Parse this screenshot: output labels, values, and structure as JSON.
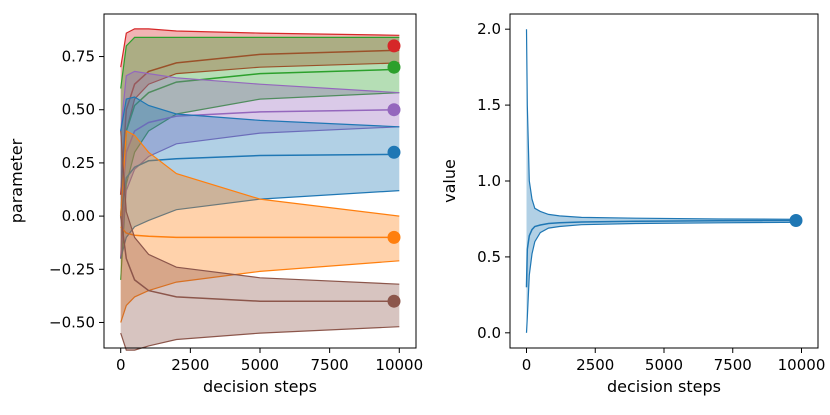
{
  "chart_data": [
    {
      "type": "area",
      "title": "",
      "xlabel": "decision steps",
      "ylabel": "parameter",
      "xlim": [
        -600,
        10600
      ],
      "ylim": [
        -0.62,
        0.95
      ],
      "xticks": [
        0,
        2500,
        5000,
        7500,
        10000
      ],
      "xtick_labels": [
        "0",
        "2500",
        "5000",
        "7500",
        "10000"
      ],
      "yticks": [
        -0.5,
        -0.25,
        0.0,
        0.25,
        0.5,
        0.75
      ],
      "ytick_labels": [
        "−0.50",
        "−0.25",
        "0.00",
        "0.25",
        "0.50",
        "0.75"
      ],
      "grid": false,
      "series": [
        {
          "name": "red",
          "color": "#d62728",
          "true_value": 0.8,
          "x": [
            0,
            200,
            500,
            1000,
            2000,
            5000,
            10000
          ],
          "upper": [
            0.7,
            0.86,
            0.88,
            0.88,
            0.87,
            0.86,
            0.85
          ],
          "mean": [
            0.1,
            0.5,
            0.62,
            0.68,
            0.72,
            0.76,
            0.78
          ],
          "lower": [
            -0.2,
            0.4,
            0.55,
            0.62,
            0.67,
            0.7,
            0.72
          ]
        },
        {
          "name": "green",
          "color": "#2ca02c",
          "true_value": 0.7,
          "x": [
            0,
            200,
            500,
            1000,
            2000,
            5000,
            10000
          ],
          "upper": [
            0.6,
            0.8,
            0.84,
            0.84,
            0.84,
            0.84,
            0.84
          ],
          "mean": [
            0.0,
            0.4,
            0.52,
            0.58,
            0.63,
            0.67,
            0.69
          ],
          "lower": [
            -0.3,
            0.15,
            0.3,
            0.4,
            0.48,
            0.55,
            0.58
          ]
        },
        {
          "name": "purple",
          "color": "#9467bd",
          "true_value": 0.5,
          "x": [
            0,
            200,
            500,
            1000,
            2000,
            5000,
            10000
          ],
          "upper": [
            0.4,
            0.66,
            0.68,
            0.67,
            0.65,
            0.62,
            0.58
          ],
          "mean": [
            0.0,
            0.3,
            0.4,
            0.44,
            0.47,
            0.49,
            0.5
          ],
          "lower": [
            -0.2,
            0.12,
            0.22,
            0.28,
            0.34,
            0.39,
            0.42
          ]
        },
        {
          "name": "blue",
          "color": "#1f77b4",
          "true_value": 0.3,
          "x": [
            0,
            200,
            500,
            1000,
            2000,
            5000,
            10000
          ],
          "upper": [
            0.4,
            0.55,
            0.56,
            0.52,
            0.48,
            0.45,
            0.42
          ],
          "mean": [
            0.0,
            0.18,
            0.23,
            0.26,
            0.27,
            0.285,
            0.29
          ],
          "lower": [
            -0.2,
            -0.1,
            -0.05,
            -0.02,
            0.03,
            0.08,
            0.12
          ]
        },
        {
          "name": "orange",
          "color": "#ff7f0e",
          "true_value": -0.1,
          "x": [
            0,
            200,
            500,
            1000,
            2000,
            5000,
            10000
          ],
          "upper": [
            0.0,
            0.4,
            0.38,
            0.3,
            0.2,
            0.08,
            0.0
          ],
          "mean": [
            -0.05,
            -0.08,
            -0.09,
            -0.095,
            -0.1,
            -0.1,
            -0.1
          ],
          "lower": [
            -0.5,
            -0.42,
            -0.38,
            -0.35,
            -0.31,
            -0.26,
            -0.21
          ]
        },
        {
          "name": "brown",
          "color": "#8c564b",
          "true_value": -0.4,
          "x": [
            0,
            200,
            500,
            1000,
            2000,
            5000,
            10000
          ],
          "upper": [
            0.4,
            0.02,
            -0.1,
            -0.18,
            -0.24,
            -0.29,
            -0.32
          ],
          "mean": [
            0.0,
            -0.2,
            -0.3,
            -0.35,
            -0.38,
            -0.4,
            -0.4
          ],
          "lower": [
            -0.55,
            -0.63,
            -0.63,
            -0.61,
            -0.58,
            -0.55,
            -0.52
          ]
        }
      ]
    },
    {
      "type": "area",
      "title": "",
      "xlabel": "decision steps",
      "ylabel": "value",
      "xlim": [
        -600,
        10600
      ],
      "ylim": [
        -0.1,
        2.1
      ],
      "xticks": [
        0,
        2500,
        5000,
        7500,
        10000
      ],
      "xtick_labels": [
        "0",
        "2500",
        "5000",
        "7500",
        "10000"
      ],
      "yticks": [
        0.0,
        0.5,
        1.0,
        1.5,
        2.0
      ],
      "ytick_labels": [
        "0.0",
        "0.5",
        "1.0",
        "1.5",
        "2.0"
      ],
      "grid": false,
      "series": [
        {
          "name": "value",
          "color": "#1f77b4",
          "true_value": 0.74,
          "x": [
            0,
            30,
            100,
            200,
            300,
            500,
            800,
            1200,
            2000,
            4000,
            7000,
            10000
          ],
          "upper": [
            2.0,
            1.5,
            1.0,
            0.88,
            0.82,
            0.8,
            0.78,
            0.77,
            0.76,
            0.755,
            0.75,
            0.748
          ],
          "mean": [
            0.3,
            0.55,
            0.64,
            0.68,
            0.7,
            0.71,
            0.72,
            0.725,
            0.73,
            0.735,
            0.738,
            0.74
          ],
          "lower": [
            0.0,
            0.1,
            0.38,
            0.52,
            0.6,
            0.66,
            0.69,
            0.7,
            0.712,
            0.72,
            0.725,
            0.728
          ]
        }
      ]
    }
  ]
}
